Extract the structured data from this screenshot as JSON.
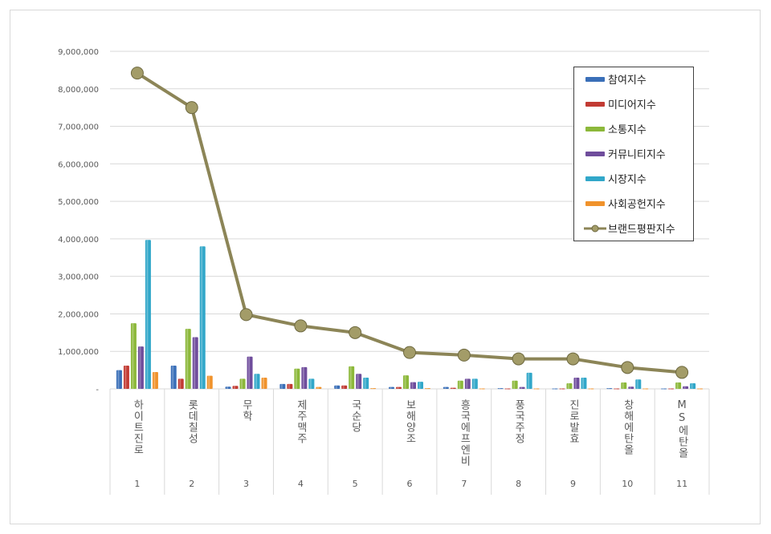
{
  "chart_data": {
    "type": "bar",
    "title": "",
    "xlabel": "",
    "ylabel": "",
    "ylim": [
      0,
      9000000
    ],
    "yticks": [
      "-",
      "1,000,000",
      "2,000,000",
      "3,000,000",
      "4,000,000",
      "5,000,000",
      "6,000,000",
      "7,000,000",
      "8,000,000",
      "9,000,000"
    ],
    "grid": true,
    "legend_position": "top-right",
    "categories": [
      "하이트진로",
      "롯데칠성",
      "무학",
      "제주맥주",
      "국순당",
      "보해양조",
      "흥국에프엔비",
      "풍국주정",
      "진로발효",
      "창해에탄올",
      "MS에탄올"
    ],
    "ranks": [
      "1",
      "2",
      "3",
      "4",
      "5",
      "6",
      "7",
      "8",
      "9",
      "10",
      "11"
    ],
    "series": [
      {
        "name": "참여지수",
        "type": "bar",
        "color": "#3a6fb8",
        "values": [
          500000,
          620000,
          60000,
          130000,
          90000,
          50000,
          50000,
          20000,
          10000,
          20000,
          10000
        ]
      },
      {
        "name": "미디어지수",
        "type": "bar",
        "color": "#c23b33",
        "values": [
          620000,
          270000,
          80000,
          130000,
          90000,
          50000,
          30000,
          10000,
          10000,
          10000,
          10000
        ]
      },
      {
        "name": "소통지수",
        "type": "bar",
        "color": "#8cb83a",
        "values": [
          1750000,
          1600000,
          270000,
          540000,
          600000,
          360000,
          220000,
          220000,
          150000,
          170000,
          170000
        ]
      },
      {
        "name": "커뮤니티지수",
        "type": "bar",
        "color": "#6f4d9c",
        "values": [
          1130000,
          1380000,
          860000,
          580000,
          400000,
          180000,
          270000,
          50000,
          300000,
          60000,
          70000
        ]
      },
      {
        "name": "시장지수",
        "type": "bar",
        "color": "#31a7c9",
        "values": [
          3970000,
          3800000,
          400000,
          270000,
          300000,
          190000,
          270000,
          430000,
          300000,
          250000,
          150000
        ]
      },
      {
        "name": "사회공헌지수",
        "type": "bar",
        "color": "#f0922b",
        "values": [
          450000,
          350000,
          300000,
          50000,
          20000,
          20000,
          10000,
          10000,
          10000,
          10000,
          10000
        ]
      },
      {
        "name": "브랜드평판지수",
        "type": "line",
        "color": "#8c8557",
        "values": [
          8420000,
          7500000,
          1980000,
          1680000,
          1500000,
          970000,
          900000,
          800000,
          800000,
          570000,
          440000
        ]
      }
    ]
  }
}
